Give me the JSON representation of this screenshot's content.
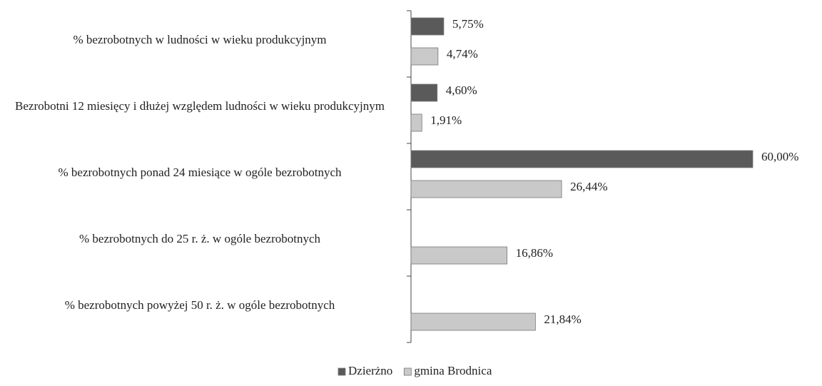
{
  "chart_data": {
    "type": "bar",
    "orientation": "horizontal",
    "categories": [
      "% bezrobotnych w ludności w wieku produkcyjnym",
      "Bezrobotni 12 miesięcy i dłużej względem ludności w wieku produkcyjnym",
      "% bezrobotnych ponad 24 miesiące w ogóle bezrobotnych",
      "% bezrobotnych do 25 r. ż. w ogóle bezrobotnych",
      "% bezrobotnych powyżej 50 r. ż. w ogóle bezrobotnych"
    ],
    "series": [
      {
        "name": "Dzierżno",
        "color": "#5a5a5a",
        "values": [
          5.75,
          4.6,
          60.0,
          null,
          null
        ],
        "value_labels": [
          "5,75%",
          "4,60%",
          "60,00%",
          null,
          null
        ]
      },
      {
        "name": "gmina Brodnica",
        "color": "#c9c9c9",
        "values": [
          4.74,
          1.91,
          26.44,
          16.86,
          21.84
        ],
        "value_labels": [
          "4,74%",
          "1,91%",
          "26,44%",
          "16,86%",
          "21,84%"
        ]
      }
    ]
  }
}
